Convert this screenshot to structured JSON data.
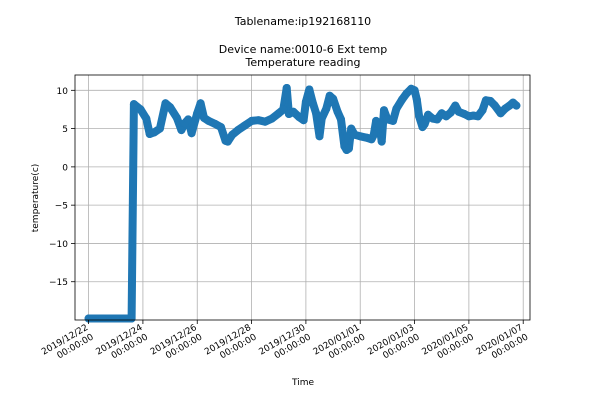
{
  "chart_data": {
    "type": "line",
    "title_lines": [
      "Tablename:ip192168110",
      "Device name:0010-6 Ext temp",
      "Temperature reading"
    ],
    "xlabel": "Time",
    "ylabel": "temperature(c)",
    "grid": true,
    "xlim": [
      "2019-12-21T12:00",
      "2020-01-07T06:00"
    ],
    "ylim": [
      -20,
      12
    ],
    "x_ticks": [
      {
        "value": "2019-12-22T00:00",
        "line1": "2019/12/22",
        "line2": "00:00:00"
      },
      {
        "value": "2019-12-24T00:00",
        "line1": "2019/12/24",
        "line2": "00:00:00"
      },
      {
        "value": "2019-12-26T00:00",
        "line1": "2019/12/26",
        "line2": "00:00:00"
      },
      {
        "value": "2019-12-28T00:00",
        "line1": "2019/12/28",
        "line2": "00:00:00"
      },
      {
        "value": "2019-12-30T00:00",
        "line1": "2019/12/30",
        "line2": "00:00:00"
      },
      {
        "value": "2020-01-01T00:00",
        "line1": "2020/01/01",
        "line2": "00:00:00"
      },
      {
        "value": "2020-01-03T00:00",
        "line1": "2020/01/03",
        "line2": "00:00:00"
      },
      {
        "value": "2020-01-05T00:00",
        "line1": "2020/01/05",
        "line2": "00:00:00"
      },
      {
        "value": "2020-01-07T00:00",
        "line1": "2020/01/07",
        "line2": "00:00:00"
      }
    ],
    "y_ticks": [
      10,
      5,
      0,
      -5,
      -10,
      -15
    ],
    "series": [
      {
        "color": "#1f77b4",
        "points": [
          [
            "2019-12-22T00:00",
            -19.8
          ],
          [
            "2019-12-22T12:00",
            -19.8
          ],
          [
            "2019-12-23T00:00",
            -19.8
          ],
          [
            "2019-12-23T08:00",
            -19.8
          ],
          [
            "2019-12-23T14:00",
            -19.8
          ],
          [
            "2019-12-23T16:00",
            8.2
          ],
          [
            "2019-12-23T22:00",
            7.5
          ],
          [
            "2019-12-24T03:00",
            6.3
          ],
          [
            "2019-12-24T06:00",
            4.3
          ],
          [
            "2019-12-24T10:00",
            4.5
          ],
          [
            "2019-12-24T15:00",
            5.0
          ],
          [
            "2019-12-24T20:00",
            8.3
          ],
          [
            "2019-12-25T00:00",
            7.8
          ],
          [
            "2019-12-25T06:00",
            6.4
          ],
          [
            "2019-12-25T10:00",
            4.8
          ],
          [
            "2019-12-25T13:00",
            5.7
          ],
          [
            "2019-12-25T16:00",
            6.2
          ],
          [
            "2019-12-25T19:00",
            4.4
          ],
          [
            "2019-12-26T00:00",
            7.0
          ],
          [
            "2019-12-26T03:00",
            8.3
          ],
          [
            "2019-12-26T06:00",
            6.4
          ],
          [
            "2019-12-26T10:00",
            6.0
          ],
          [
            "2019-12-26T16:00",
            5.6
          ],
          [
            "2019-12-26T21:00",
            5.2
          ],
          [
            "2019-12-27T01:00",
            3.4
          ],
          [
            "2019-12-27T03:00",
            3.3
          ],
          [
            "2019-12-27T07:00",
            4.2
          ],
          [
            "2019-12-27T12:00",
            4.8
          ],
          [
            "2019-12-27T18:00",
            5.4
          ],
          [
            "2019-12-28T00:00",
            6.0
          ],
          [
            "2019-12-28T06:00",
            6.1
          ],
          [
            "2019-12-28T12:00",
            5.9
          ],
          [
            "2019-12-28T18:00",
            6.3
          ],
          [
            "2019-12-29T00:00",
            7.0
          ],
          [
            "2019-12-29T04:00",
            7.5
          ],
          [
            "2019-12-29T07:00",
            10.3
          ],
          [
            "2019-12-29T09:00",
            6.9
          ],
          [
            "2019-12-29T13:00",
            7.2
          ],
          [
            "2019-12-29T18:00",
            6.5
          ],
          [
            "2019-12-29T22:00",
            6.1
          ],
          [
            "2019-12-30T00:00",
            8.5
          ],
          [
            "2019-12-30T03:00",
            10.1
          ],
          [
            "2019-12-30T06:00",
            8.4
          ],
          [
            "2019-12-30T09:00",
            7.0
          ],
          [
            "2019-12-30T12:00",
            4.0
          ],
          [
            "2019-12-30T14:00",
            6.3
          ],
          [
            "2019-12-30T18:00",
            7.6
          ],
          [
            "2019-12-30T21:00",
            9.3
          ],
          [
            "2019-12-31T00:00",
            8.9
          ],
          [
            "2019-12-31T04:00",
            7.2
          ],
          [
            "2019-12-31T07:00",
            6.2
          ],
          [
            "2019-12-31T10:00",
            2.7
          ],
          [
            "2019-12-31T12:00",
            2.2
          ],
          [
            "2019-12-31T14:00",
            2.4
          ],
          [
            "2019-12-31T16:00",
            5.0
          ],
          [
            "2019-12-31T19:00",
            4.2
          ],
          [
            "2020-01-01T00:00",
            4.0
          ],
          [
            "2020-01-01T06:00",
            3.8
          ],
          [
            "2020-01-01T10:00",
            3.6
          ],
          [
            "2020-01-01T12:00",
            4.2
          ],
          [
            "2020-01-01T14:00",
            6.0
          ],
          [
            "2020-01-01T17:00",
            5.5
          ],
          [
            "2020-01-01T19:00",
            3.3
          ],
          [
            "2020-01-01T21:00",
            7.4
          ],
          [
            "2020-01-02T00:00",
            6.2
          ],
          [
            "2020-01-02T05:00",
            6.0
          ],
          [
            "2020-01-02T08:00",
            7.6
          ],
          [
            "2020-01-02T13:00",
            8.8
          ],
          [
            "2020-01-02T17:00",
            9.6
          ],
          [
            "2020-01-02T21:00",
            10.2
          ],
          [
            "2020-01-03T00:00",
            10.0
          ],
          [
            "2020-01-03T02:00",
            8.8
          ],
          [
            "2020-01-03T04:00",
            6.6
          ],
          [
            "2020-01-03T07:00",
            5.2
          ],
          [
            "2020-01-03T09:00",
            5.6
          ],
          [
            "2020-01-03T12:00",
            6.8
          ],
          [
            "2020-01-03T16:00",
            6.3
          ],
          [
            "2020-01-03T20:00",
            6.2
          ],
          [
            "2020-01-04T00:00",
            7.0
          ],
          [
            "2020-01-04T04:00",
            6.6
          ],
          [
            "2020-01-04T08:00",
            7.1
          ],
          [
            "2020-01-04T12:00",
            8.0
          ],
          [
            "2020-01-04T15:00",
            7.2
          ],
          [
            "2020-01-04T20:00",
            6.9
          ],
          [
            "2020-01-05T00:00",
            6.6
          ],
          [
            "2020-01-05T04:00",
            6.7
          ],
          [
            "2020-01-05T08:00",
            6.6
          ],
          [
            "2020-01-05T12:00",
            7.4
          ],
          [
            "2020-01-05T15:00",
            8.7
          ],
          [
            "2020-01-05T19:00",
            8.6
          ],
          [
            "2020-01-05T23:00",
            8.0
          ],
          [
            "2020-01-06T04:00",
            7.0
          ],
          [
            "2020-01-06T08:00",
            7.6
          ],
          [
            "2020-01-06T12:00",
            8.0
          ],
          [
            "2020-01-06T15:00",
            8.4
          ],
          [
            "2020-01-06T18:00",
            8.0
          ]
        ]
      }
    ]
  }
}
